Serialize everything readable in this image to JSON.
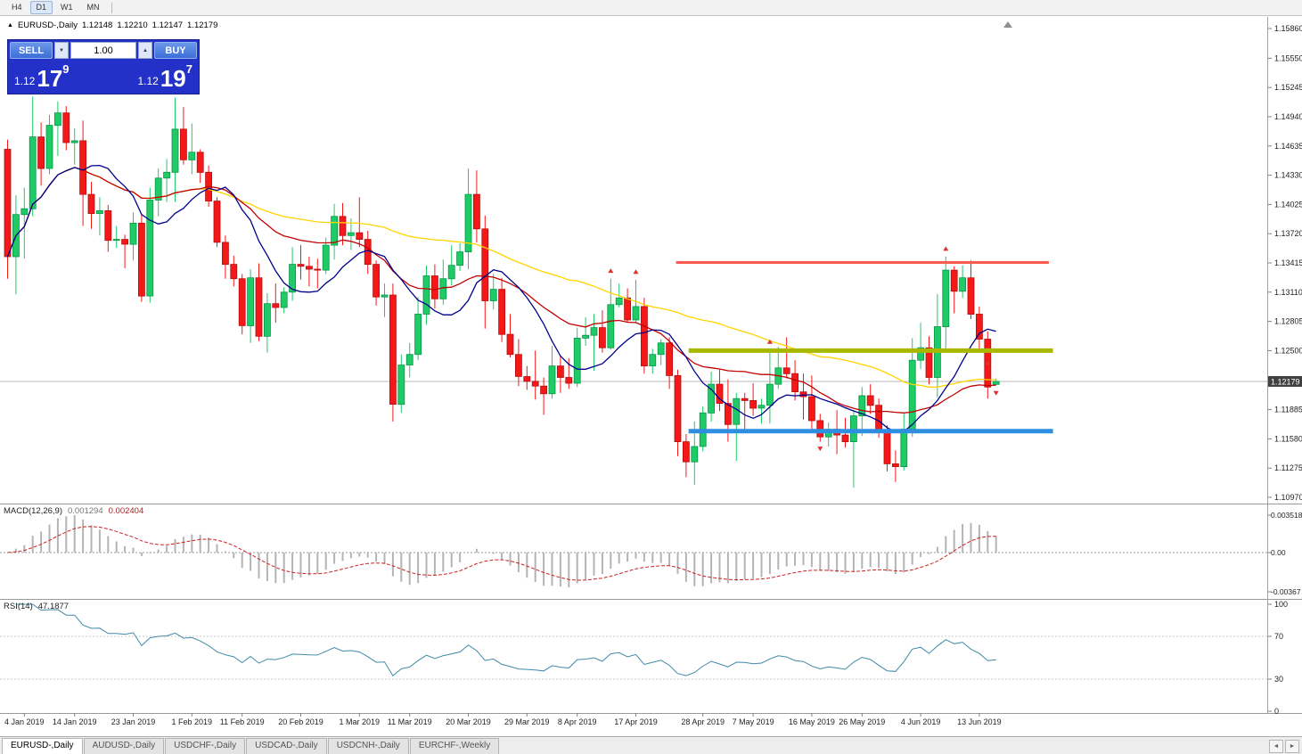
{
  "toolbar": {
    "timeframes": [
      "H4",
      "D1",
      "W1",
      "MN"
    ],
    "active": "D1"
  },
  "chart_header": {
    "marker_icon": "▲",
    "symbol": "EURUSD-,Daily",
    "open": "1.12148",
    "high": "1.12210",
    "low": "1.12147",
    "close": "1.12179"
  },
  "trade_panel": {
    "sell_label": "SELL",
    "buy_label": "BUY",
    "volume": "1.00",
    "sell_price": {
      "prefix": "1.12",
      "big": "17",
      "sup": "9"
    },
    "buy_price": {
      "prefix": "1.12",
      "big": "19",
      "sup": "7"
    }
  },
  "icons": {
    "scroll_left": "◄",
    "scroll_right": "►",
    "volume_up": "▲",
    "volume_down": "▼",
    "scroll_to_end": "▲"
  },
  "price_axis": {
    "labels": [
      "1.15860",
      "1.15550",
      "1.15245",
      "1.14940",
      "1.14635",
      "1.14330",
      "1.14025",
      "1.13720",
      "1.13415",
      "1.13110",
      "1.12805",
      "1.12500",
      "1.11885",
      "1.11580",
      "1.11275",
      "1.10970"
    ],
    "current": "1.12179"
  },
  "macd_panel": {
    "label": "MACD(12,26,9)",
    "value_main": "0.001294",
    "value_signal": "0.002404",
    "axis": [
      "0.003518",
      "0.00",
      "-0.00367"
    ]
  },
  "rsi_panel": {
    "label": "RSI(14)",
    "value": "47.1877",
    "axis": [
      "100",
      "70",
      "30",
      "0"
    ]
  },
  "date_axis": [
    {
      "i": 2,
      "t": "4 Jan 2019"
    },
    {
      "i": 8,
      "t": "14 Jan 2019"
    },
    {
      "i": 15,
      "t": "23 Jan 2019"
    },
    {
      "i": 22,
      "t": "1 Feb 2019"
    },
    {
      "i": 28,
      "t": "11 Feb 2019"
    },
    {
      "i": 35,
      "t": "20 Feb 2019"
    },
    {
      "i": 42,
      "t": "1 Mar 2019"
    },
    {
      "i": 48,
      "t": "11 Mar 2019"
    },
    {
      "i": 55,
      "t": "20 Mar 2019"
    },
    {
      "i": 62,
      "t": "29 Mar 2019"
    },
    {
      "i": 68,
      "t": "8 Apr 2019"
    },
    {
      "i": 75,
      "t": "17 Apr 2019"
    },
    {
      "i": 83,
      "t": "28 Apr 2019"
    },
    {
      "i": 89,
      "t": "7 May 2019"
    },
    {
      "i": 96,
      "t": "16 May 2019"
    },
    {
      "i": 102,
      "t": "26 May 2019"
    },
    {
      "i": 109,
      "t": "4 Jun 2019"
    },
    {
      "i": 116,
      "t": "13 Jun 2019"
    }
  ],
  "tabs": [
    {
      "label": "EURUSD-,Daily",
      "active": true
    },
    {
      "label": "AUDUSD-,Daily",
      "active": false
    },
    {
      "label": "USDCHF-,Daily",
      "active": false
    },
    {
      "label": "USDCAD-,Daily",
      "active": false
    },
    {
      "label": "USDCNH-,Daily",
      "active": false
    },
    {
      "label": "EURCHF-,Weekly",
      "active": false
    }
  ],
  "chart_data": {
    "type": "candlestick",
    "symbol": "EURUSD",
    "timeframe": "Daily",
    "price_range": [
      1.1097,
      1.1586
    ],
    "current_price": 1.12179,
    "colors": {
      "bull": "#1ecb67",
      "bull_border": "#089447",
      "bear": "#f51818",
      "bear_border": "#b50d0d",
      "macd_hist": "#b4b4b4",
      "macd_signal": "#cc2222",
      "rsi_line": "#3f8aa8",
      "current_price_line": "#b8b8b8"
    },
    "moving_averages": [
      {
        "period": 10,
        "color": "#00008B"
      },
      {
        "period": 24,
        "color": "#c00000"
      },
      {
        "period": 52,
        "color": "#ffd400"
      }
    ],
    "hlines": [
      {
        "price": 1.1342,
        "i1": 79.8,
        "i2": 124.3,
        "color": "#ff5a50",
        "width": 3
      },
      {
        "price": 1.125,
        "i1": 81.3,
        "i2": 124.8,
        "color": "#a8b800",
        "width": 5
      },
      {
        "price": 1.1166,
        "i1": 81.3,
        "i2": 124.8,
        "color": "#2e8fe0",
        "width": 5
      }
    ],
    "fractals": [
      {
        "i": 72,
        "p": 1.1333,
        "d": "up"
      },
      {
        "i": 75,
        "p": 1.1332,
        "d": "up"
      },
      {
        "i": 91,
        "p": 1.1259,
        "d": "up"
      },
      {
        "i": 97,
        "p": 1.1148,
        "d": "down"
      },
      {
        "i": 112,
        "p": 1.1356,
        "d": "up"
      },
      {
        "i": 117,
        "p": 1.1237,
        "d": "up"
      },
      {
        "i": 118,
        "p": 1.1206,
        "d": "down"
      }
    ],
    "candles": [
      [
        1.146,
        1.147,
        1.1325,
        1.1348
      ],
      [
        1.1348,
        1.1412,
        1.1309,
        1.1392
      ],
      [
        1.1392,
        1.142,
        1.1346,
        1.1398
      ],
      [
        1.1398,
        1.1515,
        1.139,
        1.1473
      ],
      [
        1.1473,
        1.1488,
        1.1422,
        1.144
      ],
      [
        1.144,
        1.1496,
        1.1434,
        1.1485
      ],
      [
        1.1485,
        1.151,
        1.1453,
        1.1498
      ],
      [
        1.1498,
        1.1505,
        1.1459,
        1.1467
      ],
      [
        1.1467,
        1.1482,
        1.1444,
        1.1469
      ],
      [
        1.1469,
        1.149,
        1.138,
        1.1413
      ],
      [
        1.1413,
        1.1426,
        1.1377,
        1.1393
      ],
      [
        1.1393,
        1.141,
        1.137,
        1.1396
      ],
      [
        1.1396,
        1.1402,
        1.1353,
        1.1365
      ],
      [
        1.1365,
        1.138,
        1.1357,
        1.1366
      ],
      [
        1.1366,
        1.1371,
        1.1336,
        1.1361
      ],
      [
        1.1361,
        1.1394,
        1.1344,
        1.1383
      ],
      [
        1.1383,
        1.1392,
        1.1301,
        1.1307
      ],
      [
        1.1307,
        1.142,
        1.13,
        1.1407
      ],
      [
        1.1407,
        1.144,
        1.139,
        1.143
      ],
      [
        1.143,
        1.145,
        1.1405,
        1.1436
      ],
      [
        1.1436,
        1.1514,
        1.1405,
        1.1481
      ],
      [
        1.1481,
        1.1504,
        1.1444,
        1.1449
      ],
      [
        1.1449,
        1.1487,
        1.1434,
        1.1457
      ],
      [
        1.1457,
        1.146,
        1.1425,
        1.1436
      ],
      [
        1.1436,
        1.1443,
        1.14,
        1.1406
      ],
      [
        1.1406,
        1.141,
        1.1358,
        1.1363
      ],
      [
        1.1363,
        1.137,
        1.1325,
        1.134
      ],
      [
        1.134,
        1.1349,
        1.1317,
        1.1325
      ],
      [
        1.1325,
        1.133,
        1.1267,
        1.1276
      ],
      [
        1.1276,
        1.1335,
        1.1258,
        1.1326
      ],
      [
        1.1326,
        1.1341,
        1.126,
        1.1265
      ],
      [
        1.1265,
        1.131,
        1.1248,
        1.1299
      ],
      [
        1.1299,
        1.132,
        1.1279,
        1.1295
      ],
      [
        1.1295,
        1.1316,
        1.1289,
        1.1311
      ],
      [
        1.1311,
        1.1358,
        1.1302,
        1.134
      ],
      [
        1.134,
        1.136,
        1.1324,
        1.1338
      ],
      [
        1.1338,
        1.1348,
        1.1317,
        1.1335
      ],
      [
        1.1335,
        1.1346,
        1.1315,
        1.1334
      ],
      [
        1.1334,
        1.1368,
        1.133,
        1.136
      ],
      [
        1.136,
        1.1403,
        1.1345,
        1.139
      ],
      [
        1.139,
        1.1404,
        1.136,
        1.137
      ],
      [
        1.137,
        1.1388,
        1.1355,
        1.1373
      ],
      [
        1.1373,
        1.141,
        1.1358,
        1.1366
      ],
      [
        1.1366,
        1.1375,
        1.133,
        1.134
      ],
      [
        1.134,
        1.1344,
        1.1297,
        1.1306
      ],
      [
        1.1306,
        1.132,
        1.1285,
        1.1308
      ],
      [
        1.1308,
        1.132,
        1.1176,
        1.1194
      ],
      [
        1.1194,
        1.1246,
        1.1185,
        1.1235
      ],
      [
        1.1235,
        1.1258,
        1.1222,
        1.1246
      ],
      [
        1.1246,
        1.1306,
        1.124,
        1.1288
      ],
      [
        1.1288,
        1.1339,
        1.1277,
        1.1328
      ],
      [
        1.1328,
        1.134,
        1.1294,
        1.1304
      ],
      [
        1.1304,
        1.1345,
        1.1298,
        1.1325
      ],
      [
        1.1325,
        1.136,
        1.1318,
        1.1339
      ],
      [
        1.1339,
        1.1362,
        1.1333,
        1.1353
      ],
      [
        1.1353,
        1.144,
        1.1335,
        1.1413
      ],
      [
        1.1413,
        1.1438,
        1.1363,
        1.1377
      ],
      [
        1.1377,
        1.1391,
        1.1273,
        1.1302
      ],
      [
        1.1302,
        1.133,
        1.1293,
        1.1314
      ],
      [
        1.1314,
        1.1326,
        1.1259,
        1.1267
      ],
      [
        1.1267,
        1.1288,
        1.1243,
        1.1246
      ],
      [
        1.1246,
        1.1262,
        1.1213,
        1.1223
      ],
      [
        1.1223,
        1.1234,
        1.1209,
        1.1218
      ],
      [
        1.1218,
        1.125,
        1.1199,
        1.1213
      ],
      [
        1.1213,
        1.1222,
        1.1183,
        1.1205
      ],
      [
        1.1205,
        1.1255,
        1.12,
        1.1234
      ],
      [
        1.1234,
        1.1244,
        1.1206,
        1.1222
      ],
      [
        1.1222,
        1.1242,
        1.121,
        1.1216
      ],
      [
        1.1216,
        1.1274,
        1.1212,
        1.1263
      ],
      [
        1.1263,
        1.1285,
        1.1255,
        1.1266
      ],
      [
        1.1266,
        1.1288,
        1.1229,
        1.1274
      ],
      [
        1.1274,
        1.1292,
        1.1248,
        1.1253
      ],
      [
        1.1253,
        1.1325,
        1.1251,
        1.1298
      ],
      [
        1.1298,
        1.132,
        1.1295,
        1.1305
      ],
      [
        1.1305,
        1.1315,
        1.1279,
        1.1282
      ],
      [
        1.1282,
        1.1324,
        1.128,
        1.1296
      ],
      [
        1.1296,
        1.1305,
        1.1226,
        1.1234
      ],
      [
        1.1234,
        1.1252,
        1.1226,
        1.1246
      ],
      [
        1.1246,
        1.1262,
        1.1235,
        1.1258
      ],
      [
        1.1258,
        1.1264,
        1.121,
        1.1224
      ],
      [
        1.1224,
        1.123,
        1.114,
        1.1155
      ],
      [
        1.1155,
        1.1163,
        1.1118,
        1.1134
      ],
      [
        1.1134,
        1.1176,
        1.111,
        1.115
      ],
      [
        1.115,
        1.1192,
        1.1145,
        1.1185
      ],
      [
        1.1185,
        1.1228,
        1.1176,
        1.1215
      ],
      [
        1.1215,
        1.123,
        1.1187,
        1.1195
      ],
      [
        1.1195,
        1.122,
        1.1155,
        1.1173
      ],
      [
        1.1173,
        1.1206,
        1.1135,
        1.12
      ],
      [
        1.12,
        1.1206,
        1.1165,
        1.1198
      ],
      [
        1.1198,
        1.1216,
        1.1182,
        1.119
      ],
      [
        1.119,
        1.12,
        1.1174,
        1.1193
      ],
      [
        1.1193,
        1.1251,
        1.1174,
        1.1215
      ],
      [
        1.1215,
        1.1254,
        1.121,
        1.1232
      ],
      [
        1.1232,
        1.1264,
        1.1221,
        1.1226
      ],
      [
        1.1226,
        1.124,
        1.1198,
        1.1207
      ],
      [
        1.1207,
        1.1226,
        1.1178,
        1.1202
      ],
      [
        1.1202,
        1.1224,
        1.1166,
        1.1177
      ],
      [
        1.1177,
        1.1184,
        1.1155,
        1.116
      ],
      [
        1.116,
        1.1175,
        1.115,
        1.1168
      ],
      [
        1.1168,
        1.1188,
        1.1142,
        1.1162
      ],
      [
        1.1162,
        1.118,
        1.1149,
        1.1155
      ],
      [
        1.1155,
        1.1188,
        1.1107,
        1.1182
      ],
      [
        1.1182,
        1.1212,
        1.1161,
        1.1203
      ],
      [
        1.1203,
        1.1215,
        1.1184,
        1.1193
      ],
      [
        1.1193,
        1.12,
        1.1159,
        1.1165
      ],
      [
        1.1165,
        1.1172,
        1.1124,
        1.1132
      ],
      [
        1.1132,
        1.1146,
        1.1113,
        1.1129
      ],
      [
        1.1129,
        1.1184,
        1.1125,
        1.1168
      ],
      [
        1.1168,
        1.1263,
        1.116,
        1.124
      ],
      [
        1.124,
        1.1279,
        1.1231,
        1.1253
      ],
      [
        1.1253,
        1.1265,
        1.1215,
        1.1222
      ],
      [
        1.1222,
        1.1309,
        1.1201,
        1.1275
      ],
      [
        1.1275,
        1.1348,
        1.1251,
        1.1334
      ],
      [
        1.1334,
        1.1338,
        1.1289,
        1.1312
      ],
      [
        1.1312,
        1.1339,
        1.1305,
        1.1326
      ],
      [
        1.1326,
        1.1344,
        1.1283,
        1.1288
      ],
      [
        1.1288,
        1.1296,
        1.125,
        1.1262
      ],
      [
        1.1262,
        1.127,
        1.12,
        1.1212
      ],
      [
        1.12148,
        1.1221,
        1.12147,
        1.12179
      ]
    ]
  }
}
